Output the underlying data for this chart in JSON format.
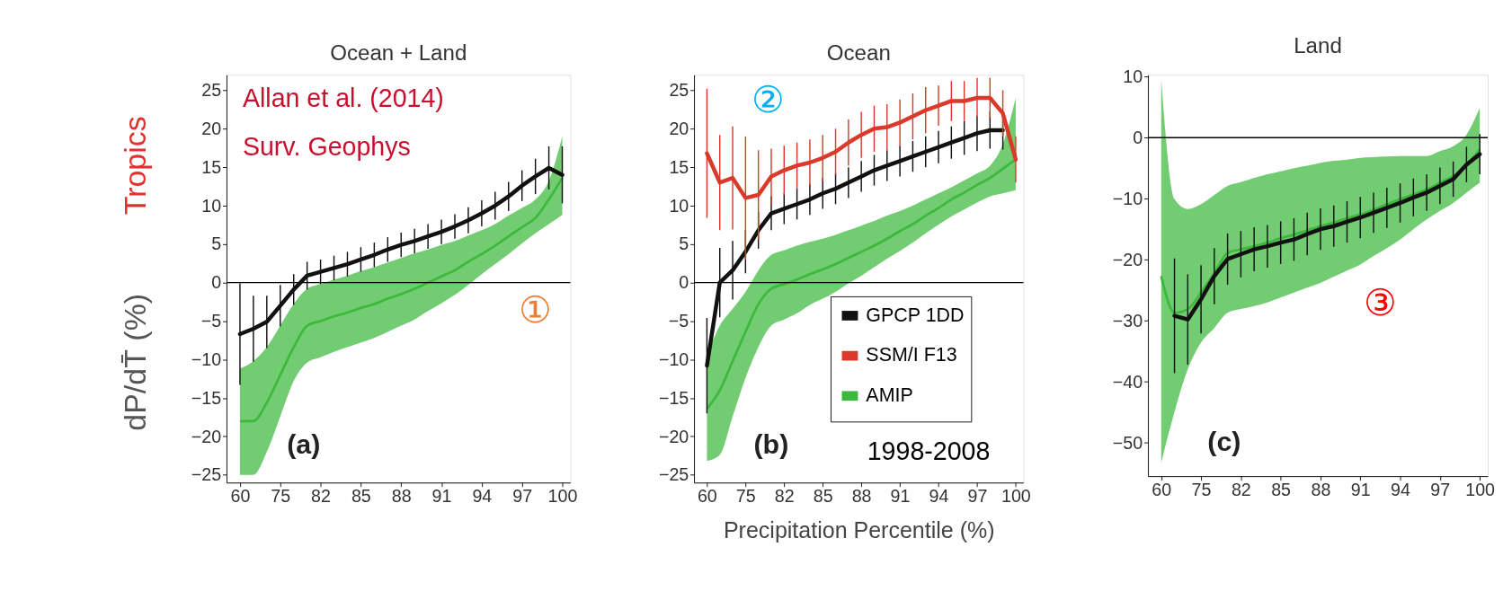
{
  "chart_data": [
    {
      "type": "line",
      "title": "Ocean + Land",
      "ylabel": "dP/dT̄ (%)",
      "ylim": [
        -26,
        27
      ],
      "categories": [
        "60",
        null,
        null,
        "75",
        null,
        null,
        "82",
        null,
        null,
        "85",
        null,
        null,
        "88",
        null,
        null,
        "91",
        null,
        null,
        "94",
        null,
        null,
        "97",
        null,
        null,
        "100"
      ],
      "yticks": [
        -25,
        -20,
        -15,
        -10,
        -5,
        0,
        5,
        10,
        15,
        20,
        25
      ],
      "grid": false,
      "legend": false,
      "marker": "none",
      "line_style": "solid",
      "ref_lines": [
        {
          "axis": "y",
          "value": 0,
          "color": "#000000"
        }
      ],
      "annotations": [
        "Allan et al. (2014)",
        "Surv. Geophys",
        "①",
        "(a)",
        "Tropics"
      ],
      "series": [
        {
          "color": "#111111",
          "values": [
            -6.7,
            -6,
            -5.1,
            -3,
            -0.9,
            0.9,
            1.4,
            1.9,
            2.4,
            3,
            3.6,
            4.3,
            4.9,
            5.4,
            6,
            6.6,
            7.3,
            8.1,
            9,
            10,
            11.2,
            12.6,
            13.8,
            14.9,
            14
          ],
          "errors": [
            6.6,
            4.3,
            3.4,
            2.7,
            2,
            1.8,
            1.6,
            1.6,
            1.6,
            1.6,
            1.6,
            1.6,
            1.6,
            1.6,
            1.6,
            1.6,
            1.6,
            1.7,
            1.7,
            1.8,
            1.9,
            2,
            2.3,
            2.8,
            3.7
          ]
        },
        {
          "color": "#3cb83c",
          "values": [
            -18,
            -18,
            -15.6,
            -12,
            -8.4,
            -5.6,
            -5,
            -4.4,
            -3.9,
            -3.3,
            -2.8,
            -2.1,
            -1.5,
            -0.8,
            0,
            0.8,
            1.6,
            2.7,
            3.7,
            4.8,
            6,
            7.2,
            8.4,
            10.8,
            13.6
          ],
          "upper": [
            -11.2,
            -10.2,
            -8.4,
            -5.6,
            -2.8,
            -0.8,
            -0.2,
            0.4,
            0.9,
            1.5,
            2,
            2.6,
            3.2,
            3.8,
            4.3,
            4.9,
            5.4,
            6.1,
            6.8,
            7.6,
            8.7,
            9.7,
            10.8,
            13.2,
            19
          ],
          "lower": [
            -25,
            -25,
            -22,
            -17.4,
            -12.8,
            -10.4,
            -9.7,
            -9,
            -8.4,
            -7.8,
            -7.2,
            -6.4,
            -5.6,
            -4.8,
            -3.7,
            -2.7,
            -1.6,
            -0.3,
            1.1,
            2.4,
            3.7,
            5.1,
            6.4,
            7.6,
            8.8
          ]
        }
      ]
    },
    {
      "type": "line",
      "title": "Ocean",
      "xlabel": "Precipitation Percentile (%)",
      "ylim": [
        -26,
        27
      ],
      "categories": [
        "60",
        null,
        null,
        "75",
        null,
        null,
        "82",
        null,
        null,
        "85",
        null,
        null,
        "88",
        null,
        null,
        "91",
        null,
        null,
        "94",
        null,
        null,
        "97",
        null,
        null,
        "100"
      ],
      "yticks": [
        -25,
        -20,
        -15,
        -10,
        -5,
        0,
        5,
        10,
        15,
        20,
        25
      ],
      "grid": false,
      "legend": "bottom right",
      "marker": "none",
      "line_style": "solid",
      "ref_lines": [
        {
          "axis": "y",
          "value": 0,
          "color": "#000000"
        }
      ],
      "annotations": [
        "②",
        "(b)",
        "1998-2008"
      ],
      "series": [
        {
          "name": "GPCP 1DD",
          "color": "#111111",
          "values": [
            -10.8,
            0,
            1.6,
            4,
            6.8,
            9,
            9.6,
            10.2,
            10.8,
            11.6,
            12.2,
            13,
            13.8,
            14.6,
            15.2,
            15.8,
            16.4,
            17,
            17.6,
            18.2,
            18.8,
            19.4,
            19.8,
            19.8,
            null
          ],
          "errors": [
            6.2,
            4.5,
            3.8,
            2.8,
            2.4,
            2.2,
            2,
            2,
            2,
            2,
            2,
            2,
            2,
            2,
            2,
            2,
            2,
            2,
            2.1,
            2.1,
            2.2,
            2.3,
            2.4,
            2.5,
            null
          ]
        },
        {
          "name": "SSM/I F13",
          "color": "#d93a2b",
          "values": [
            16.8,
            13,
            13.6,
            11,
            11.4,
            13.8,
            14.6,
            15.2,
            15.6,
            16.2,
            17,
            18.2,
            19.2,
            20,
            20.2,
            20.8,
            21.6,
            22.4,
            23,
            23.6,
            23.6,
            24,
            24,
            22,
            16
          ],
          "errors": [
            8.4,
            6.2,
            6.7,
            8,
            5.8,
            3.6,
            3.2,
            3,
            3,
            3,
            3,
            3,
            3,
            3,
            3,
            3,
            3,
            3,
            2.6,
            2.6,
            2.6,
            2.6,
            2.6,
            3,
            3
          ]
        },
        {
          "name": "AMIP",
          "color": "#3cb83c",
          "values": [
            -16.4,
            -14,
            -10.2,
            -6.4,
            -2.8,
            -0.8,
            -0.2,
            0.4,
            1.1,
            1.7,
            2.4,
            3.2,
            4,
            4.8,
            5.7,
            6.7,
            7.6,
            8.7,
            9.7,
            10.8,
            11.7,
            12.7,
            13.6,
            14.8,
            16
          ],
          "upper": [
            -9.6,
            -5.6,
            -3.4,
            -1.2,
            1.6,
            3.6,
            4.2,
            4.8,
            5.3,
            5.7,
            6.2,
            6.8,
            7.4,
            8,
            8.7,
            9.3,
            10,
            10.8,
            11.6,
            12.4,
            13.3,
            14.2,
            15.2,
            18,
            24
          ],
          "lower": [
            -23.2,
            -22.4,
            -17.4,
            -12.4,
            -8.4,
            -5.6,
            -4.8,
            -4,
            -2.9,
            -2.1,
            -1.2,
            -0.1,
            0.9,
            2,
            3.1,
            4.1,
            5.2,
            6.4,
            7.5,
            8.6,
            9.5,
            10.4,
            11.2,
            11.6,
            12
          ]
        }
      ]
    },
    {
      "type": "line",
      "title": "Land",
      "ylim": [
        -55.5,
        10.3
      ],
      "categories": [
        "60",
        null,
        null,
        "75",
        null,
        null,
        "82",
        null,
        null,
        "85",
        null,
        null,
        "88",
        null,
        null,
        "91",
        null,
        null,
        "94",
        null,
        null,
        "97",
        null,
        null,
        "100"
      ],
      "yticks": [
        -50,
        -40,
        -30,
        -20,
        -10,
        0,
        10
      ],
      "grid": false,
      "legend": false,
      "marker": "none",
      "line_style": "solid",
      "ref_lines": [
        {
          "axis": "y",
          "value": 0,
          "color": "#000000"
        }
      ],
      "annotations": [
        "③",
        "(c)"
      ],
      "series": [
        {
          "color": "#111111",
          "values": [
            null,
            -29.2,
            -29.8,
            -26.5,
            -22.7,
            -19.9,
            -19.1,
            -18.3,
            -17.8,
            -17.2,
            -16.7,
            -15.8,
            -15,
            -14.5,
            -13.8,
            -13.1,
            -12.3,
            -11.5,
            -10.7,
            -9.8,
            -9,
            -7.9,
            -6.8,
            -4.4,
            -2.7
          ],
          "errors": [
            null,
            9.4,
            7.4,
            5.6,
            4.6,
            4.2,
            3.8,
            3.6,
            3.5,
            3.5,
            3.5,
            3.5,
            3.4,
            3.4,
            3.4,
            3.4,
            3.3,
            3.3,
            3.2,
            3.1,
            3,
            3,
            2.9,
            2.9,
            3.3
          ]
        },
        {
          "color": "#3cb83c",
          "values": [
            -22.7,
            -28.7,
            -28.1,
            -25.4,
            -22.2,
            -18.9,
            -18.3,
            -17.8,
            -17.2,
            -16.5,
            -15.9,
            -15.2,
            -14.5,
            -13.9,
            -13.2,
            -12.6,
            -11.8,
            -10.9,
            -10.1,
            -9.3,
            -8.5,
            -7.4,
            -6.3,
            -4.5,
            -1.9
          ],
          "upper": [
            9.6,
            -10.1,
            -11.7,
            -10.9,
            -9.4,
            -7.9,
            -7.3,
            -6.6,
            -6,
            -5.5,
            -5,
            -4.6,
            -4.1,
            -3.8,
            -3.6,
            -3.3,
            -3.2,
            -3.1,
            -3,
            -3,
            -3,
            -2.2,
            -1.4,
            0.5,
            4.9
          ],
          "lower": [
            -53.3,
            -45,
            -38,
            -33.6,
            -31.2,
            -28.7,
            -28.1,
            -27.6,
            -27,
            -26.2,
            -25.4,
            -24.6,
            -23.8,
            -22.8,
            -21.8,
            -20.8,
            -19.4,
            -18.1,
            -16.7,
            -15,
            -13.4,
            -12,
            -10.7,
            -9,
            -7.4
          ]
        }
      ]
    }
  ]
}
